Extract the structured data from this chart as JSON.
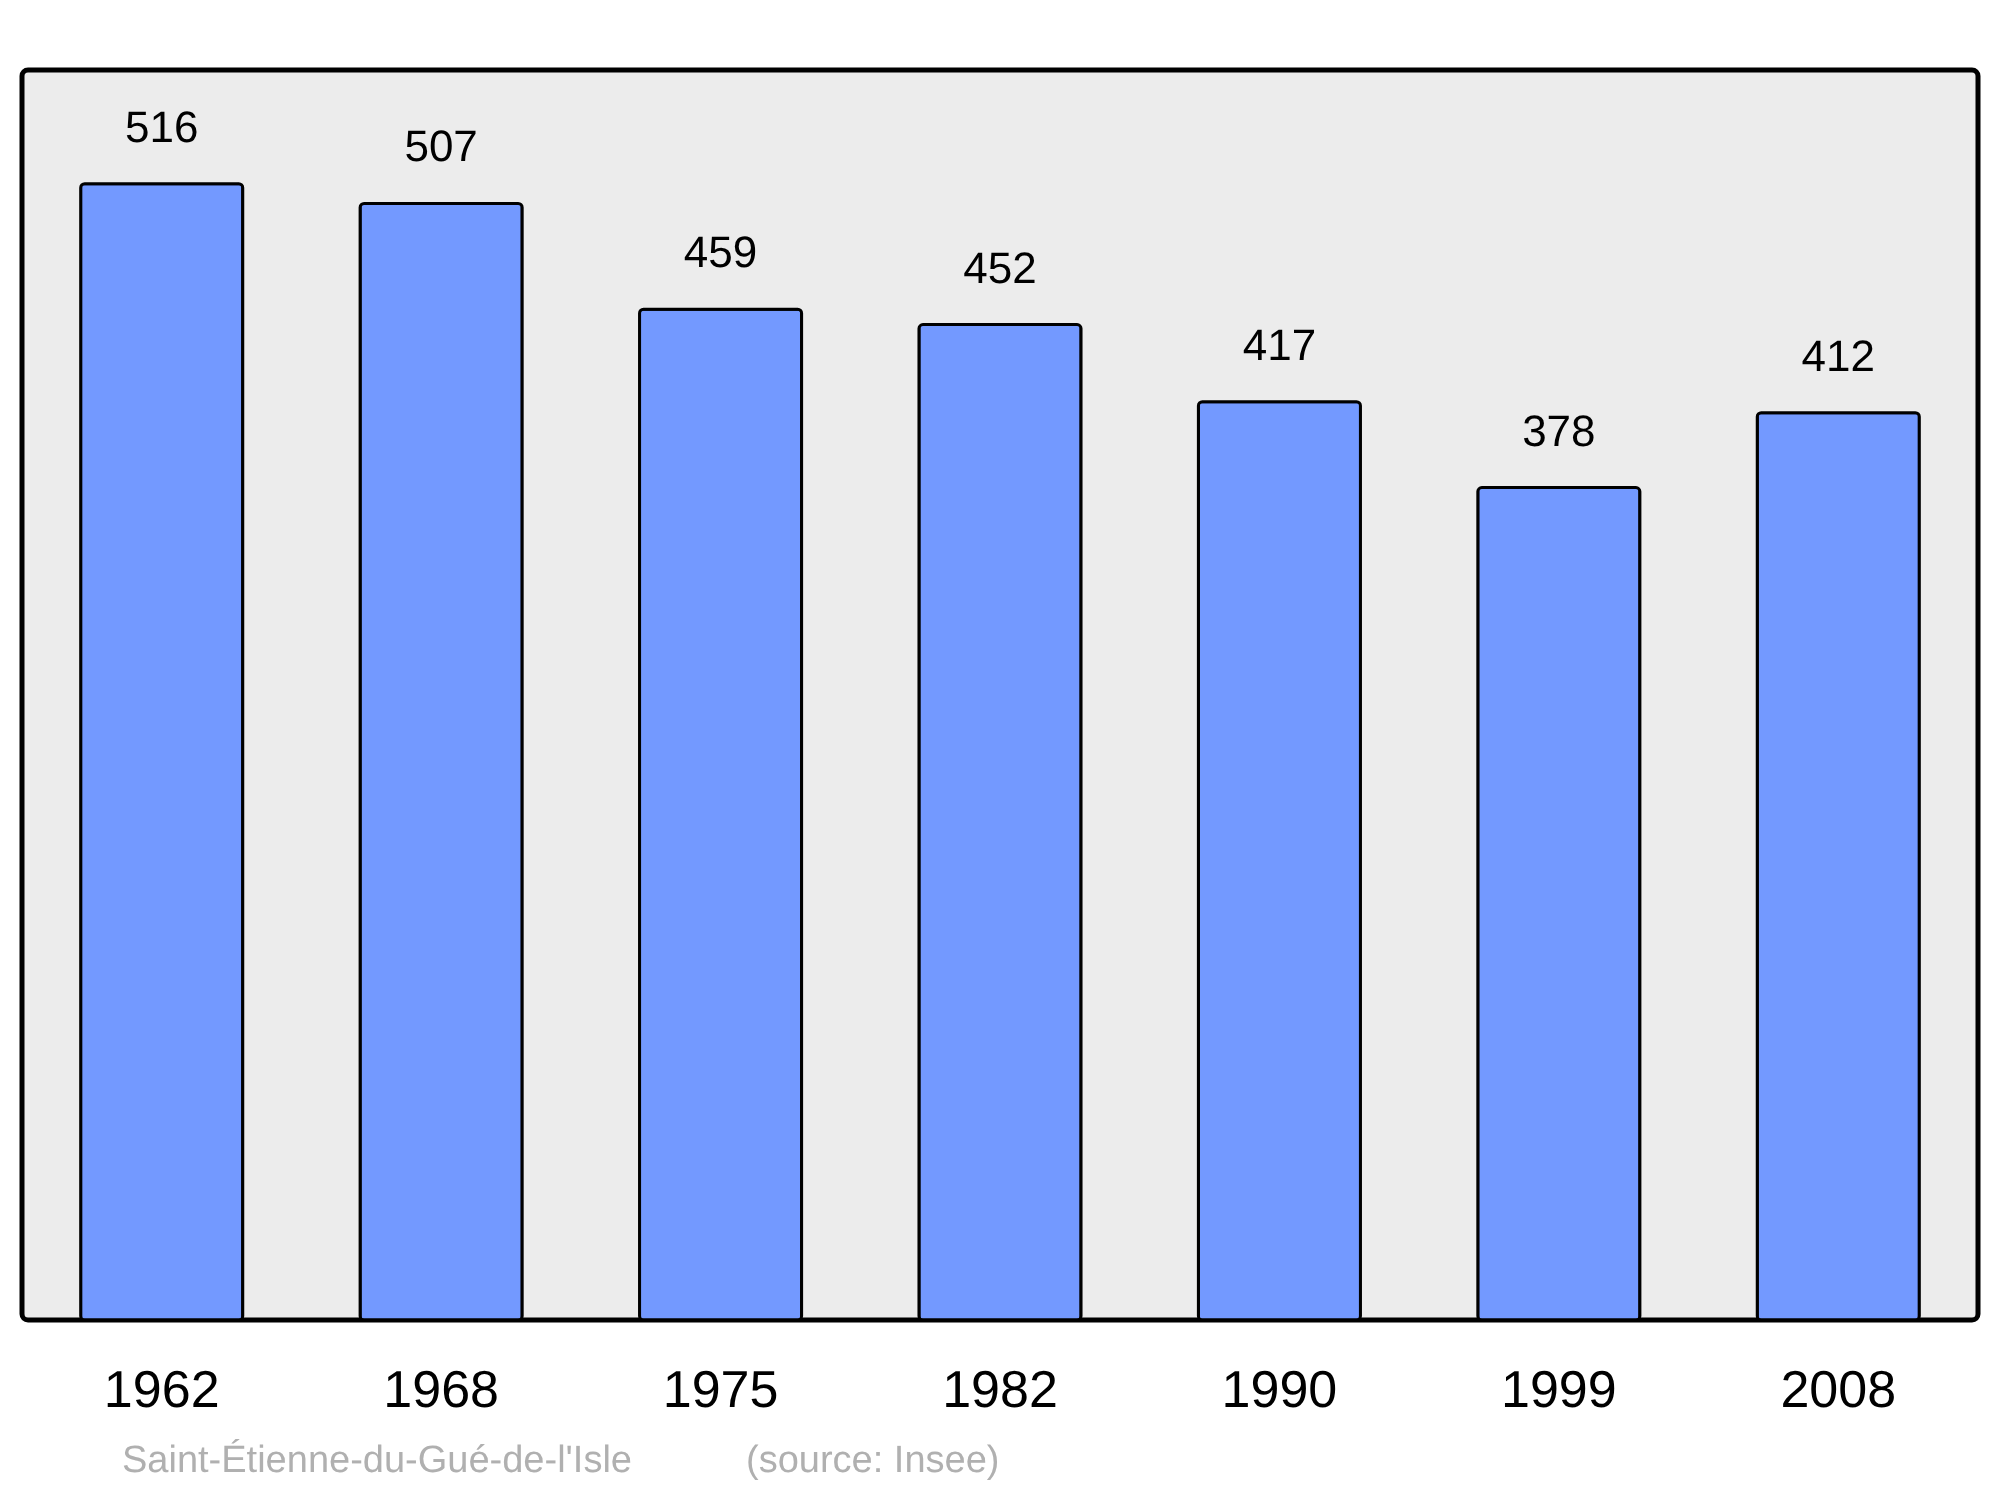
{
  "chart_data": {
    "type": "bar",
    "categories": [
      "1962",
      "1968",
      "1975",
      "1982",
      "1990",
      "1999",
      "2008"
    ],
    "values": [
      516,
      507,
      459,
      452,
      417,
      378,
      412
    ],
    "color": "#7399ff",
    "data_labels": true,
    "annotations": [
      "Saint-Étienne-du-Gué-de-l'Isle",
      "(source: Insee)"
    ]
  }
}
